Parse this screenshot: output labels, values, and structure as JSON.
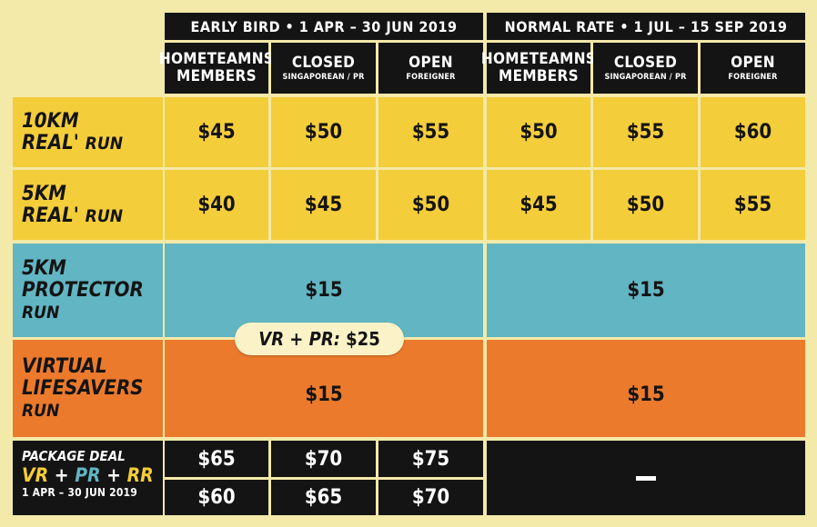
{
  "header": {
    "early_bird": "EARLY BIRD  •  1 APR – 30 JUN 2019",
    "normal_rate": "NORMAL RATE  •  1 JUL – 15 SEP 2019"
  },
  "columns": [
    {
      "main_line1": "HOMETEAMNS",
      "main_line2": "MEMBERS",
      "sub": ""
    },
    {
      "main_line1": "CLOSED",
      "main_line2": "",
      "sub": "SINGAPOREAN / PR"
    },
    {
      "main_line1": "OPEN",
      "main_line2": "",
      "sub": "FOREIGNER"
    },
    {
      "main_line1": "HOMETEAMNS",
      "main_line2": "MEMBERS",
      "sub": ""
    },
    {
      "main_line1": "CLOSED",
      "main_line2": "",
      "sub": "SINGAPOREAN / PR"
    },
    {
      "main_line1": "OPEN",
      "main_line2": "",
      "sub": "FOREIGNER"
    }
  ],
  "rows": {
    "r10km": {
      "line1": "10KM",
      "line2a": "REAL",
      "line2b": "RUN",
      "prices": [
        "$45",
        "$50",
        "$55",
        "$50",
        "$55",
        "$60"
      ]
    },
    "r5km": {
      "line1": "5KM",
      "line2a": "REAL",
      "line2b": "RUN",
      "prices": [
        "$40",
        "$45",
        "$50",
        "$45",
        "$50",
        "$55"
      ]
    },
    "protector": {
      "line1": "5KM",
      "line2": "PROTECTOR",
      "line3": "RUN",
      "early": "$15",
      "normal": "$15"
    },
    "virtual": {
      "line1": "VIRTUAL",
      "line2": "LIFESAVERS",
      "line3": "RUN",
      "early": "$15",
      "normal": "$15"
    }
  },
  "combo_pill": {
    "label": "VR + PR:",
    "price": "$25"
  },
  "package": {
    "title": "PACKAGE DEAL",
    "vr": "VR",
    "pr": "PR",
    "rr": "RR",
    "plus": "+",
    "date": "1 APR – 30 JUN 2019",
    "row1": [
      "$65",
      "$70",
      "$75"
    ],
    "row2": [
      "$60",
      "$65",
      "$70"
    ],
    "normal": "—"
  },
  "colors": {
    "yellow": "#f4cd3a",
    "blue": "#62b5c2",
    "orange": "#ec7a2c",
    "black": "#141414",
    "cream": "#f3e9a8"
  }
}
